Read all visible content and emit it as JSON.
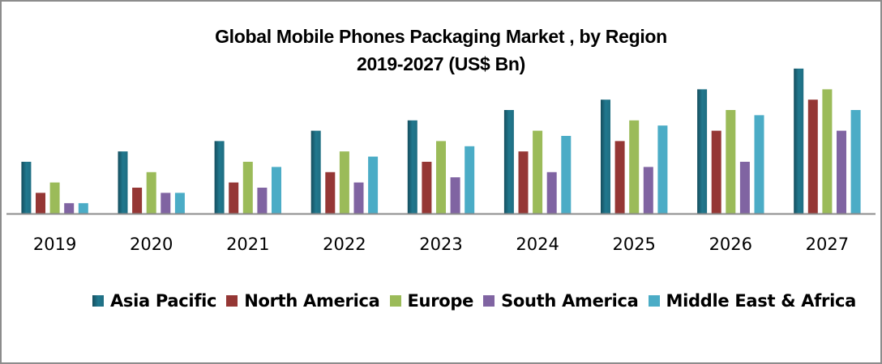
{
  "chart_data": {
    "type": "bar",
    "title": "Global Mobile Phones Packaging Market , by Region",
    "subtitle": "2019-2027 (US$ Bn)",
    "xlabel": "",
    "ylabel": "",
    "ylim": [
      0,
      15
    ],
    "grid": false,
    "legend_position": "bottom",
    "categories": [
      "2019",
      "2020",
      "2021",
      "2022",
      "2023",
      "2024",
      "2025",
      "2026",
      "2027"
    ],
    "series": [
      {
        "name": "Asia Pacific",
        "color": "#1f6e82",
        "values": [
          5,
          6,
          7,
          8,
          9,
          10,
          11,
          12,
          14
        ]
      },
      {
        "name": "North America",
        "color": "#953735",
        "values": [
          2,
          2.5,
          3,
          4,
          5,
          6,
          7,
          8,
          11
        ]
      },
      {
        "name": "Europe",
        "color": "#9bbb59",
        "values": [
          3,
          4,
          5,
          6,
          7,
          8,
          9,
          10,
          12
        ]
      },
      {
        "name": "South America",
        "color": "#8064a2",
        "values": [
          1,
          2,
          2.5,
          3,
          3.5,
          4,
          4.5,
          5,
          8
        ]
      },
      {
        "name": "Middle East & Africa",
        "color": "#4bacc6",
        "values": [
          1,
          2,
          4.5,
          5.5,
          6.5,
          7.5,
          8.5,
          9.5,
          10
        ]
      }
    ]
  }
}
